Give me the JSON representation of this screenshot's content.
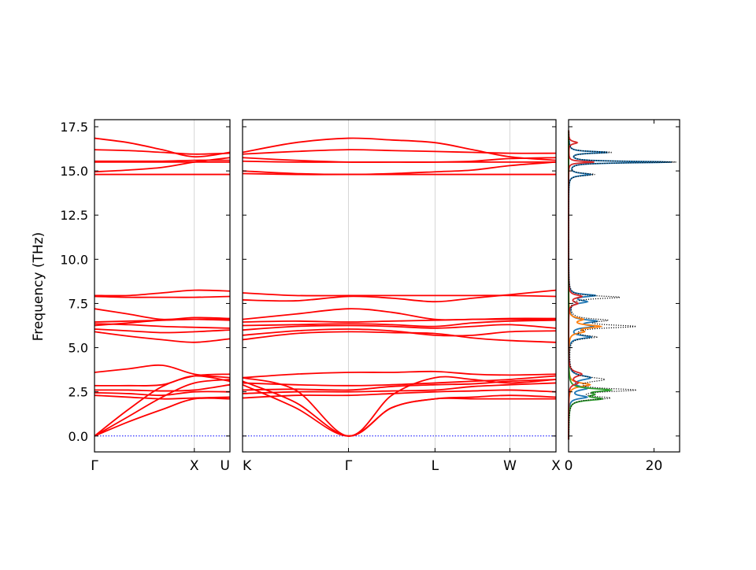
{
  "chart_data": [
    {
      "type": "line",
      "panel": "band-structure-left",
      "ylabel": "Frequency (THz)",
      "ylim": [
        -0.9,
        17.9
      ],
      "yticks": [
        0.0,
        2.5,
        5.0,
        7.5,
        10.0,
        12.5,
        15.0,
        17.5
      ],
      "ytick_labels": [
        "0.0",
        "2.5",
        "5.0",
        "7.5",
        "10.0",
        "12.5",
        "15.0",
        "17.5"
      ],
      "xlim": [
        0,
        1
      ],
      "xticks": [
        0,
        0.737,
        1
      ],
      "xtick_labels": [
        "Γ",
        "X",
        "U"
      ],
      "color": "#ff0000",
      "zero_line": {
        "y": 0,
        "color": "#0000ff",
        "style": "dotted"
      },
      "series": [
        {
          "x": [
            0,
            0.25,
            0.5,
            0.737,
            1
          ],
          "values": [
            0,
            0.8,
            1.5,
            2.1,
            2.1
          ]
        },
        {
          "x": [
            0,
            0.25,
            0.5,
            0.737,
            1
          ],
          "values": [
            0,
            1.1,
            2.2,
            3.0,
            3.2
          ]
        },
        {
          "x": [
            0,
            0.25,
            0.5,
            0.737,
            1
          ],
          "values": [
            0,
            1.5,
            2.8,
            3.4,
            3.5
          ]
        },
        {
          "x": [
            0,
            0.25,
            0.5,
            0.737,
            1
          ],
          "values": [
            2.3,
            2.2,
            2.1,
            2.15,
            2.2
          ]
        },
        {
          "x": [
            0,
            0.25,
            0.5,
            0.737,
            1
          ],
          "values": [
            2.45,
            2.4,
            2.3,
            2.5,
            2.5
          ]
        },
        {
          "x": [
            0,
            0.25,
            0.5,
            0.737,
            1
          ],
          "values": [
            2.6,
            2.6,
            2.55,
            2.6,
            2.9
          ]
        },
        {
          "x": [
            0,
            0.25,
            0.5,
            0.737,
            1
          ],
          "values": [
            2.85,
            2.85,
            2.9,
            3.4,
            3.1
          ]
        },
        {
          "x": [
            0,
            0.25,
            0.5,
            0.737,
            1
          ],
          "values": [
            3.6,
            3.8,
            4.0,
            3.5,
            3.3
          ]
        },
        {
          "x": [
            0,
            0.25,
            0.5,
            0.737,
            1
          ],
          "values": [
            5.9,
            5.65,
            5.45,
            5.3,
            5.5
          ]
        },
        {
          "x": [
            0,
            0.25,
            0.5,
            0.737,
            1
          ],
          "values": [
            6.05,
            5.95,
            5.85,
            5.9,
            6.0
          ]
        },
        {
          "x": [
            0,
            0.25,
            0.5,
            0.737,
            1
          ],
          "values": [
            6.25,
            6.4,
            6.55,
            6.6,
            6.55
          ]
        },
        {
          "x": [
            0,
            0.25,
            0.5,
            0.737,
            1
          ],
          "values": [
            6.35,
            6.3,
            6.2,
            6.15,
            6.1
          ]
        },
        {
          "x": [
            0,
            0.25,
            0.5,
            0.737,
            1
          ],
          "values": [
            6.45,
            6.5,
            6.55,
            6.6,
            6.6
          ]
        },
        {
          "x": [
            0,
            0.25,
            0.5,
            0.737,
            1
          ],
          "values": [
            7.2,
            6.9,
            6.6,
            6.7,
            6.65
          ]
        },
        {
          "x": [
            0,
            0.25,
            0.5,
            0.737,
            1
          ],
          "values": [
            7.9,
            7.85,
            7.85,
            7.85,
            7.9
          ]
        },
        {
          "x": [
            0,
            0.25,
            0.5,
            0.737,
            1
          ],
          "values": [
            7.95,
            7.95,
            8.1,
            8.25,
            8.2
          ]
        },
        {
          "x": [
            0,
            0.25,
            0.5,
            0.737,
            1
          ],
          "values": [
            14.8,
            14.8,
            14.8,
            14.8,
            14.8
          ]
        },
        {
          "x": [
            0,
            0.25,
            0.5,
            0.737,
            1
          ],
          "values": [
            14.95,
            15.05,
            15.2,
            15.5,
            15.75
          ]
        },
        {
          "x": [
            0,
            0.25,
            0.5,
            0.737,
            1
          ],
          "values": [
            15.5,
            15.5,
            15.5,
            15.5,
            15.5
          ]
        },
        {
          "x": [
            0,
            0.25,
            0.5,
            0.737,
            1
          ],
          "values": [
            15.55,
            15.55,
            15.55,
            15.6,
            15.6
          ]
        },
        {
          "x": [
            0,
            0.25,
            0.5,
            0.737,
            1
          ],
          "values": [
            16.2,
            16.15,
            16.05,
            15.95,
            16.0
          ]
        },
        {
          "x": [
            0,
            0.25,
            0.5,
            0.737,
            1
          ],
          "values": [
            16.85,
            16.6,
            16.2,
            15.8,
            16.05
          ]
        }
      ]
    },
    {
      "type": "line",
      "panel": "band-structure-right",
      "ylim": [
        -0.9,
        17.9
      ],
      "xlim": [
        0,
        1
      ],
      "xticks": [
        0,
        0.338,
        0.614,
        0.853,
        1
      ],
      "xtick_labels": [
        "K",
        "Γ",
        "L",
        "W",
        "X"
      ],
      "color": "#ff0000",
      "zero_line": {
        "y": 0,
        "color": "#0000ff",
        "style": "dotted"
      },
      "series": [
        {
          "x": [
            0,
            0.169,
            0.338,
            0.476,
            0.614,
            0.734,
            0.853,
            1
          ],
          "values": [
            2.9,
            1.6,
            0,
            1.6,
            2.1,
            2.1,
            2.1,
            2.1
          ]
        },
        {
          "x": [
            0,
            0.169,
            0.338,
            0.476,
            0.614,
            0.734,
            0.853,
            1
          ],
          "values": [
            3.1,
            1.9,
            0,
            1.6,
            2.1,
            2.2,
            2.3,
            2.2
          ]
        },
        {
          "x": [
            0,
            0.169,
            0.338,
            0.476,
            0.614,
            0.734,
            0.853,
            1
          ],
          "values": [
            3.3,
            2.6,
            0,
            2.3,
            3.3,
            3.2,
            3.0,
            3.2
          ]
        },
        {
          "x": [
            0,
            0.169,
            0.338,
            0.476,
            0.614,
            0.734,
            0.853,
            1
          ],
          "values": [
            2.15,
            2.3,
            2.3,
            2.4,
            2.5,
            2.55,
            2.6,
            2.5
          ]
        },
        {
          "x": [
            0,
            0.169,
            0.338,
            0.476,
            0.614,
            0.734,
            0.853,
            1
          ],
          "values": [
            2.4,
            2.5,
            2.5,
            2.55,
            2.6,
            2.8,
            2.9,
            3.0
          ]
        },
        {
          "x": [
            0,
            0.169,
            0.338,
            0.476,
            0.614,
            0.734,
            0.853,
            1
          ],
          "values": [
            2.6,
            2.65,
            2.6,
            2.8,
            2.9,
            2.95,
            3.1,
            3.2
          ]
        },
        {
          "x": [
            0,
            0.169,
            0.338,
            0.476,
            0.614,
            0.734,
            0.853,
            1
          ],
          "values": [
            3.0,
            2.9,
            2.85,
            2.9,
            3.0,
            3.1,
            3.2,
            3.4
          ]
        },
        {
          "x": [
            0,
            0.169,
            0.338,
            0.476,
            0.614,
            0.734,
            0.853,
            1
          ],
          "values": [
            3.3,
            3.5,
            3.6,
            3.6,
            3.65,
            3.5,
            3.45,
            3.5
          ]
        },
        {
          "x": [
            0,
            0.169,
            0.338,
            0.476,
            0.614,
            0.734,
            0.853,
            1
          ],
          "values": [
            5.45,
            5.8,
            5.9,
            5.85,
            5.8,
            5.55,
            5.4,
            5.3
          ]
        },
        {
          "x": [
            0,
            0.169,
            0.338,
            0.476,
            0.614,
            0.734,
            0.853,
            1
          ],
          "values": [
            5.7,
            5.95,
            6.05,
            5.95,
            5.7,
            5.7,
            5.9,
            5.95
          ]
        },
        {
          "x": [
            0,
            0.169,
            0.338,
            0.476,
            0.614,
            0.734,
            0.853,
            1
          ],
          "values": [
            6.0,
            6.2,
            6.25,
            6.2,
            6.1,
            6.2,
            6.3,
            6.1
          ]
        },
        {
          "x": [
            0,
            0.169,
            0.338,
            0.476,
            0.614,
            0.734,
            0.853,
            1
          ],
          "values": [
            6.25,
            6.3,
            6.35,
            6.3,
            6.2,
            6.4,
            6.5,
            6.55
          ]
        },
        {
          "x": [
            0,
            0.169,
            0.338,
            0.476,
            0.614,
            0.734,
            0.853,
            1
          ],
          "values": [
            6.45,
            6.5,
            6.45,
            6.5,
            6.55,
            6.6,
            6.6,
            6.6
          ]
        },
        {
          "x": [
            0,
            0.169,
            0.338,
            0.476,
            0.614,
            0.734,
            0.853,
            1
          ],
          "values": [
            6.6,
            6.9,
            7.2,
            7.0,
            6.6,
            6.6,
            6.65,
            6.65
          ]
        },
        {
          "x": [
            0,
            0.169,
            0.338,
            0.476,
            0.614,
            0.734,
            0.853,
            1
          ],
          "values": [
            7.7,
            7.65,
            7.9,
            7.8,
            7.6,
            7.8,
            8.0,
            8.25
          ]
        },
        {
          "x": [
            0,
            0.169,
            0.338,
            0.476,
            0.614,
            0.734,
            0.853,
            1
          ],
          "values": [
            8.1,
            7.95,
            7.95,
            7.95,
            7.95,
            7.95,
            7.95,
            7.9
          ]
        },
        {
          "x": [
            0,
            0.169,
            0.338,
            0.476,
            0.614,
            0.734,
            0.853,
            1
          ],
          "values": [
            14.85,
            14.8,
            14.8,
            14.8,
            14.8,
            14.8,
            14.8,
            14.8
          ]
        },
        {
          "x": [
            0,
            0.169,
            0.338,
            0.476,
            0.614,
            0.734,
            0.853,
            1
          ],
          "values": [
            15.0,
            14.85,
            14.8,
            14.85,
            14.95,
            15.05,
            15.3,
            15.5
          ]
        },
        {
          "x": [
            0,
            0.169,
            0.338,
            0.476,
            0.614,
            0.734,
            0.853,
            1
          ],
          "values": [
            15.55,
            15.5,
            15.5,
            15.5,
            15.5,
            15.5,
            15.5,
            15.5
          ]
        },
        {
          "x": [
            0,
            0.169,
            0.338,
            0.476,
            0.614,
            0.734,
            0.853,
            1
          ],
          "values": [
            15.75,
            15.6,
            15.5,
            15.5,
            15.5,
            15.55,
            15.7,
            15.75
          ]
        },
        {
          "x": [
            0,
            0.169,
            0.338,
            0.476,
            0.614,
            0.734,
            0.853,
            1
          ],
          "values": [
            15.95,
            16.1,
            16.2,
            16.15,
            16.1,
            16.05,
            16.0,
            16.0
          ]
        },
        {
          "x": [
            0,
            0.169,
            0.338,
            0.476,
            0.614,
            0.734,
            0.853,
            1
          ],
          "values": [
            16.05,
            16.6,
            16.85,
            16.75,
            16.6,
            16.2,
            15.8,
            15.6
          ]
        }
      ]
    },
    {
      "type": "line",
      "panel": "density-of-states",
      "orientation": "horizontal",
      "ylim": [
        -0.9,
        17.9
      ],
      "xlim": [
        0,
        26
      ],
      "xticks": [
        0,
        20
      ],
      "xtick_labels": [
        "0",
        "20"
      ],
      "series": [
        {
          "color": "#1f77b4",
          "peaks": [
            {
              "center": 15.5,
              "height": 24,
              "width": 0.05
            },
            {
              "center": 16.05,
              "height": 9,
              "width": 0.06
            },
            {
              "center": 14.8,
              "height": 5,
              "width": 0.08
            },
            {
              "center": 7.95,
              "height": 6,
              "width": 0.08
            },
            {
              "center": 7.6,
              "height": 4,
              "width": 0.1
            },
            {
              "center": 6.5,
              "height": 6,
              "width": 0.1
            },
            {
              "center": 6.2,
              "height": 5,
              "width": 0.1
            },
            {
              "center": 5.6,
              "height": 5,
              "width": 0.1
            },
            {
              "center": 3.3,
              "height": 5,
              "width": 0.15
            },
            {
              "center": 2.7,
              "height": 4,
              "width": 0.12
            },
            {
              "center": 2.2,
              "height": 4,
              "width": 0.1
            }
          ]
        },
        {
          "color": "#ff7f0e",
          "peaks": [
            {
              "center": 6.2,
              "height": 7,
              "width": 0.1
            },
            {
              "center": 6.6,
              "height": 3,
              "width": 0.1
            },
            {
              "center": 5.9,
              "height": 3,
              "width": 0.1
            },
            {
              "center": 2.9,
              "height": 5,
              "width": 0.12
            }
          ]
        },
        {
          "color": "#2ca02c",
          "peaks": [
            {
              "center": 2.6,
              "height": 9,
              "width": 0.1
            },
            {
              "center": 2.1,
              "height": 7,
              "width": 0.1
            },
            {
              "center": 2.35,
              "height": 4,
              "width": 0.1
            }
          ]
        },
        {
          "color": "#d62728",
          "peaks": [
            {
              "center": 15.5,
              "height": 6,
              "width": 0.05
            },
            {
              "center": 16.6,
              "height": 2,
              "width": 0.08
            },
            {
              "center": 7.9,
              "height": 3,
              "width": 0.1
            },
            {
              "center": 7.5,
              "height": 2,
              "width": 0.1
            },
            {
              "center": 3.5,
              "height": 3,
              "width": 0.15
            },
            {
              "center": 3.0,
              "height": 2,
              "width": 0.12
            }
          ]
        },
        {
          "color": "#000000",
          "style": "dotted",
          "peaks": [
            {
              "center": 15.5,
              "height": 25,
              "width": 0.05
            },
            {
              "center": 16.05,
              "height": 10,
              "width": 0.06
            },
            {
              "center": 14.8,
              "height": 6,
              "width": 0.08
            },
            {
              "center": 7.85,
              "height": 12,
              "width": 0.09
            },
            {
              "center": 6.2,
              "height": 15,
              "width": 0.1
            },
            {
              "center": 6.55,
              "height": 8,
              "width": 0.1
            },
            {
              "center": 5.6,
              "height": 6,
              "width": 0.1
            },
            {
              "center": 2.6,
              "height": 15,
              "width": 0.1
            },
            {
              "center": 3.2,
              "height": 8,
              "width": 0.15
            },
            {
              "center": 2.15,
              "height": 9,
              "width": 0.1
            }
          ]
        }
      ]
    }
  ]
}
